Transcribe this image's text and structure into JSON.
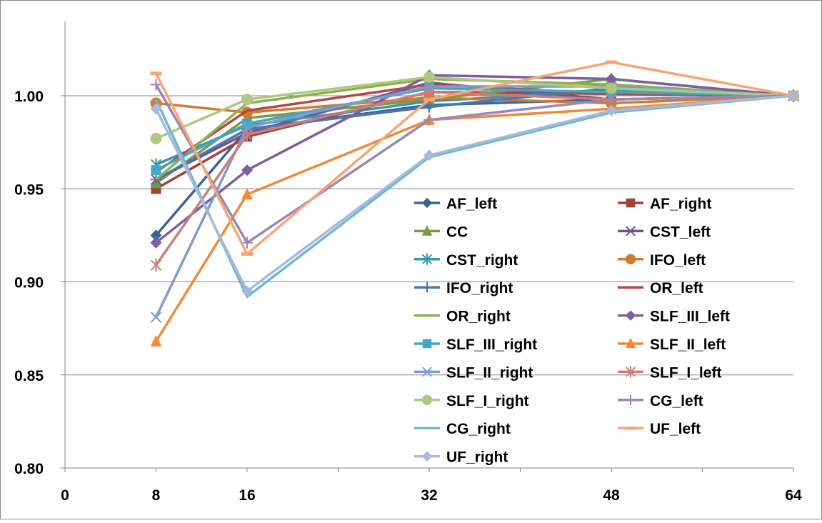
{
  "chart_data": {
    "type": "line",
    "title": "",
    "xlabel": "",
    "ylabel": "",
    "x": [
      8,
      16,
      32,
      48,
      64
    ],
    "xlim": [
      0,
      64
    ],
    "ylim": [
      0.8,
      1.03
    ],
    "x_ticks": [
      0,
      8,
      16,
      32,
      48,
      64
    ],
    "x_minor_ticks": [
      0,
      8,
      16,
      24,
      32,
      40,
      48,
      56,
      64
    ],
    "y_ticks": [
      "0.80",
      "0.85",
      "0.90",
      "0.95",
      "1.00"
    ],
    "y_tick_values": [
      0.8,
      0.85,
      0.9,
      0.95,
      1.0
    ],
    "grid": "horizontal",
    "legend_position": "bottom-right inside plot, two columns",
    "series": [
      {
        "name": "AF_left",
        "color": "#3C6496",
        "marker": "diamond",
        "values": [
          0.925,
          0.982,
          0.995,
          0.998,
          1.0
        ]
      },
      {
        "name": "AF_right",
        "color": "#A0413C",
        "marker": "square",
        "values": [
          0.95,
          0.978,
          1.002,
          1.001,
          1.0
        ]
      },
      {
        "name": "CC",
        "color": "#7A9A3F",
        "marker": "triangle",
        "values": [
          0.953,
          0.988,
          0.998,
          1.009,
          1.0
        ]
      },
      {
        "name": "CST_left",
        "color": "#6E548D",
        "marker": "x",
        "values": [
          0.955,
          0.98,
          1.007,
          0.998,
          1.0
        ]
      },
      {
        "name": "CST_right",
        "color": "#3796AE",
        "marker": "star",
        "values": [
          0.963,
          0.984,
          0.997,
          1.003,
          1.0
        ]
      },
      {
        "name": "IFO_left",
        "color": "#D27A2E",
        "marker": "circle",
        "values": [
          0.996,
          0.991,
          0.999,
          0.996,
          1.0
        ]
      },
      {
        "name": "IFO_right",
        "color": "#4A77B2",
        "marker": "plus",
        "values": [
          0.955,
          0.982,
          0.994,
          1.004,
          1.0
        ]
      },
      {
        "name": "OR_left",
        "color": "#B84744",
        "marker": "none",
        "values": [
          0.959,
          0.992,
          1.006,
          1.001,
          1.0
        ]
      },
      {
        "name": "OR_right",
        "color": "#8DB04E",
        "marker": "none",
        "values": [
          0.955,
          0.996,
          1.009,
          1.006,
          1.0
        ]
      },
      {
        "name": "SLF_III_left",
        "color": "#7B5F9E",
        "marker": "diamond",
        "values": [
          0.921,
          0.96,
          1.011,
          1.009,
          1.0
        ]
      },
      {
        "name": "SLF_III_right",
        "color": "#42A7C2",
        "marker": "square",
        "values": [
          0.96,
          0.985,
          1.004,
          1.002,
          1.0
        ]
      },
      {
        "name": "SLF_II_left",
        "color": "#EE8A3A",
        "marker": "triangle",
        "values": [
          0.868,
          0.947,
          0.987,
          0.993,
          1.0
        ]
      },
      {
        "name": "SLF_II_right",
        "color": "#7F9CCC",
        "marker": "x",
        "values": [
          0.881,
          0.983,
          1.005,
          1.005,
          1.0
        ]
      },
      {
        "name": "SLF_I_left",
        "color": "#CF7B78",
        "marker": "star",
        "values": [
          0.909,
          0.979,
          1.002,
          0.998,
          1.0
        ]
      },
      {
        "name": "SLF_I_right",
        "color": "#AFC880",
        "marker": "circle",
        "values": [
          0.977,
          0.998,
          1.01,
          1.004,
          1.0
        ]
      },
      {
        "name": "CG_left",
        "color": "#9B87B5",
        "marker": "plus",
        "values": [
          1.006,
          0.921,
          0.987,
          0.998,
          1.0
        ]
      },
      {
        "name": "CG_right",
        "color": "#6FB7CF",
        "marker": "none",
        "values": [
          0.998,
          0.892,
          0.967,
          0.991,
          1.0
        ]
      },
      {
        "name": "UF_left",
        "color": "#F7A575",
        "marker": "dash",
        "values": [
          1.012,
          0.915,
          0.998,
          1.018,
          1.0
        ]
      },
      {
        "name": "UF_right",
        "color": "#A8B9DB",
        "marker": "diamond",
        "values": [
          0.993,
          0.895,
          0.968,
          0.992,
          1.0
        ]
      }
    ]
  }
}
